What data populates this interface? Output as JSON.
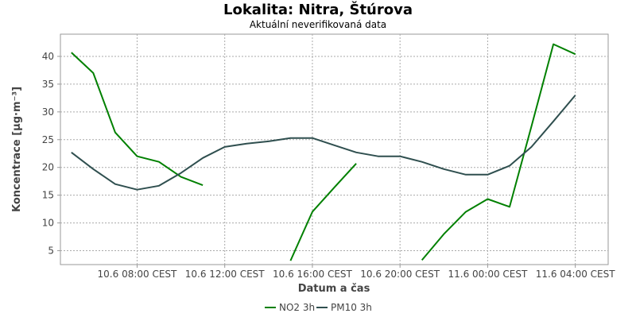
{
  "chart_data": {
    "type": "line",
    "title": "Lokalita: Nitra, Štúrova",
    "subtitle": "Aktuální neverifikovaná data",
    "xlabel": "Datum a čas",
    "ylabel": "Koncentrace [µg·m⁻³]",
    "x_hours": [
      5,
      6,
      7,
      8,
      9,
      10,
      11,
      12,
      13,
      14,
      15,
      16,
      17,
      18,
      19,
      20,
      21,
      22,
      23,
      24,
      25,
      26,
      27,
      28,
      29
    ],
    "x_ticks": [
      {
        "x": 8,
        "label": "10.6 08:00 CEST"
      },
      {
        "x": 12,
        "label": "10.6 12:00 CEST"
      },
      {
        "x": 16,
        "label": "10.6 16:00 CEST"
      },
      {
        "x": 20,
        "label": "10.6 20:00 CEST"
      },
      {
        "x": 24,
        "label": "11.6 00:00 CEST"
      },
      {
        "x": 28,
        "label": "11.6 04:00 CEST"
      }
    ],
    "xlim": [
      4.5,
      29.5
    ],
    "ylim": [
      2.5,
      44
    ],
    "y_ticks": [
      5,
      10,
      15,
      20,
      25,
      30,
      35,
      40
    ],
    "grid": true,
    "legend_position": "bottom",
    "series": [
      {
        "name": "NO2 3h",
        "color": "#008000",
        "values": [
          40.7,
          37.0,
          26.3,
          22.0,
          21.0,
          18.3,
          16.8,
          null,
          null,
          null,
          3.2,
          12.0,
          16.4,
          20.7,
          null,
          null,
          3.3,
          8.0,
          12.0,
          14.3,
          12.9,
          27.4,
          42.2,
          40.4,
          null
        ]
      },
      {
        "name": "PM10 3h",
        "color": "#2f4f4f",
        "values": [
          22.7,
          19.7,
          17.0,
          16.0,
          16.7,
          19.0,
          21.7,
          23.7,
          24.3,
          24.7,
          25.3,
          25.3,
          24.0,
          22.7,
          22.0,
          22.0,
          21.0,
          19.7,
          18.7,
          18.7,
          20.3,
          23.7,
          28.3,
          33.0,
          null
        ]
      }
    ]
  }
}
